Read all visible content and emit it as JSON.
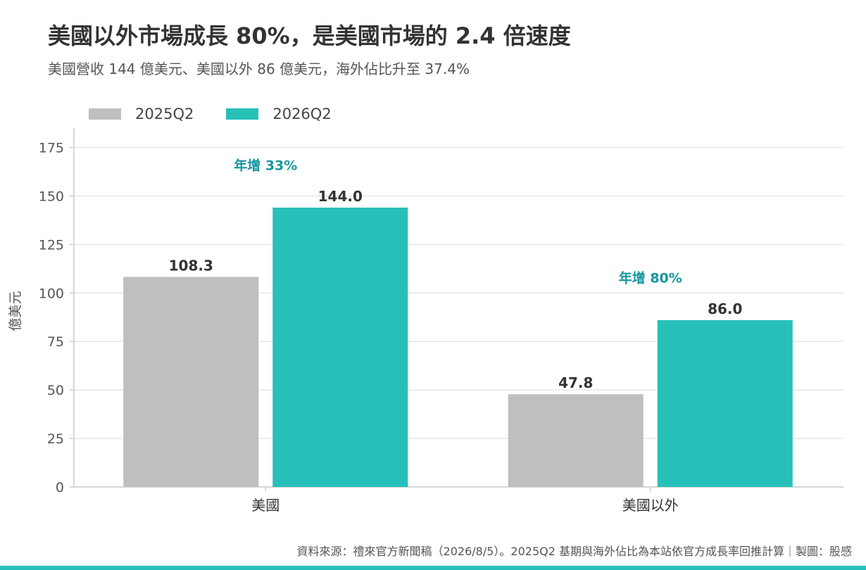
{
  "colors": {
    "series_2025": "#bfbfbf",
    "series_2026": "#26c0b9",
    "annotation": "#1596a0",
    "grid": "#e6e6e6",
    "axis": "#cccccc",
    "bottom_bar": "#26c0b9"
  },
  "chart_data": {
    "type": "bar",
    "title": "美國以外市場成長 80%，是美國市場的 2.4 倍速度",
    "subtitle": "美國營收 144 億美元、美國以外 86 億美元，海外佔比升至 37.4%",
    "xlabel": "",
    "ylabel": "億美元",
    "ylim": [
      0,
      185
    ],
    "yticks": [
      0,
      25,
      50,
      75,
      100,
      125,
      150,
      175
    ],
    "grid": true,
    "legend_placement": "top-left",
    "categories": [
      "美國",
      "美國以外"
    ],
    "series": [
      {
        "name": "2025Q2",
        "values": [
          108.3,
          47.8
        ]
      },
      {
        "name": "2026Q2",
        "values": [
          144.0,
          86.0
        ]
      }
    ],
    "data_labels": [
      [
        "108.3",
        "47.8"
      ],
      [
        "144.0",
        "86.0"
      ]
    ],
    "annotations": [
      {
        "category": "美國",
        "text": "年增 33%",
        "value": 166
      },
      {
        "category": "美國以外",
        "text": "年增 80%",
        "value": 108
      }
    ],
    "source": "資料來源：禮來官方新聞稿（2026/8/5）。2025Q2 基期與海外佔比為本站依官方成長率回推計算｜製圖：股感"
  }
}
